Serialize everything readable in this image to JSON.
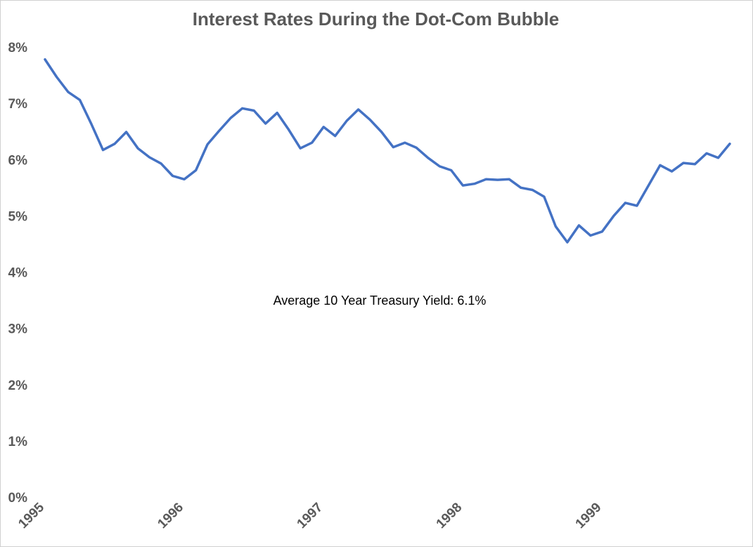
{
  "chart_data": {
    "type": "line",
    "title": "Interest Rates During the Dot-Com Bubble",
    "xlabel": "",
    "ylabel": "",
    "ylim": [
      0,
      8
    ],
    "y_ticks": [
      "0%",
      "1%",
      "2%",
      "3%",
      "4%",
      "5%",
      "6%",
      "7%",
      "8%"
    ],
    "x_ticks": [
      "1995",
      "1996",
      "1997",
      "1998",
      "1999"
    ],
    "x_tick_positions": [
      0,
      12,
      24,
      36,
      48
    ],
    "grid": false,
    "legend": "none",
    "annotation": "Average 10 Year Treasury Yield: 6.1%",
    "line_color": "#4472C4",
    "series": [
      {
        "x_start": "1995-01",
        "frequency": "monthly",
        "values": [
          7.78,
          7.47,
          7.2,
          7.06,
          6.63,
          6.17,
          6.28,
          6.49,
          6.2,
          6.04,
          5.93,
          5.71,
          5.65,
          5.81,
          6.27,
          6.51,
          6.74,
          6.91,
          6.87,
          6.64,
          6.83,
          6.53,
          6.2,
          6.3,
          6.58,
          6.42,
          6.69,
          6.89,
          6.71,
          6.49,
          6.22,
          6.3,
          6.21,
          6.03,
          5.88,
          5.81,
          5.54,
          5.57,
          5.65,
          5.64,
          5.65,
          5.5,
          5.46,
          5.34,
          4.81,
          4.53,
          4.83,
          4.65,
          4.72,
          5.0,
          5.23,
          5.18,
          5.54,
          5.9,
          5.79,
          5.94,
          5.92,
          6.11,
          6.03,
          6.28
        ]
      }
    ]
  }
}
